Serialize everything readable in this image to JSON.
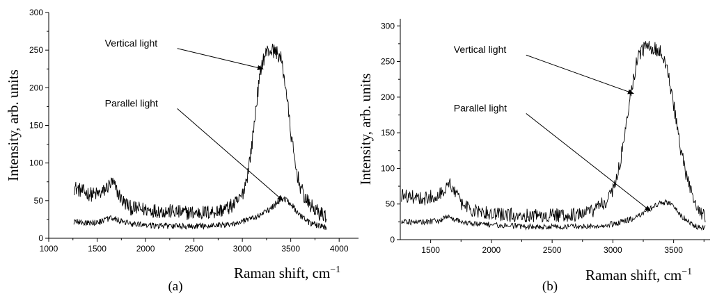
{
  "chart_data": [
    {
      "type": "line",
      "panel_label": "(a)",
      "xlabel": "Raman shift, cm",
      "xlabel_sup": "−1",
      "ylabel": "Intensity, arb. units",
      "xlim": [
        1000,
        4200
      ],
      "ylim": [
        0,
        300
      ],
      "xticks": [
        1000,
        1500,
        2000,
        2500,
        3000,
        3500,
        4000
      ],
      "yticks": [
        0,
        50,
        100,
        150,
        200,
        250,
        300
      ],
      "series": [
        {
          "name": "Vertical light",
          "noise": 10,
          "x": [
            1260,
            1350,
            1450,
            1550,
            1620,
            1660,
            1700,
            1760,
            1850,
            2000,
            2200,
            2400,
            2600,
            2750,
            2850,
            2950,
            3000,
            3050,
            3100,
            3150,
            3200,
            3250,
            3300,
            3350,
            3400,
            3450,
            3500,
            3550,
            3600,
            3650,
            3700,
            3750,
            3800,
            3870
          ],
          "y": [
            68,
            62,
            58,
            60,
            70,
            74,
            64,
            50,
            40,
            38,
            36,
            34,
            34,
            36,
            40,
            48,
            58,
            82,
            125,
            185,
            232,
            248,
            250,
            248,
            238,
            200,
            140,
            95,
            68,
            52,
            44,
            38,
            33,
            30
          ]
        },
        {
          "name": "Parallel light",
          "noise": 4,
          "x": [
            1260,
            1400,
            1550,
            1650,
            1750,
            1900,
            2100,
            2300,
            2500,
            2700,
            2900,
            3000,
            3100,
            3200,
            3300,
            3350,
            3400,
            3450,
            3500,
            3550,
            3600,
            3650,
            3700,
            3800,
            3870
          ],
          "y": [
            22,
            20,
            22,
            28,
            22,
            18,
            17,
            16,
            16,
            17,
            19,
            22,
            26,
            32,
            40,
            46,
            52,
            52,
            46,
            38,
            30,
            24,
            20,
            16,
            14
          ]
        }
      ],
      "annotations": [
        {
          "text": "Vertical light",
          "x": 1580,
          "y": 255,
          "arrow_to": [
            3215,
            225
          ]
        },
        {
          "text": "Parallel light",
          "x": 1580,
          "y": 175,
          "arrow_to": [
            3420,
            50
          ]
        }
      ]
    },
    {
      "type": "line",
      "panel_label": "(b)",
      "xlabel": "Raman shift, cm",
      "xlabel_sup": "−1",
      "ylabel": "Intensity, arb. units",
      "xlim": [
        1250,
        3800
      ],
      "ylim": [
        0,
        310
      ],
      "xticks": [
        1500,
        2000,
        2500,
        3000,
        3500
      ],
      "yticks": [
        0,
        50,
        100,
        150,
        200,
        250,
        300
      ],
      "series": [
        {
          "name": "Vertical light",
          "noise": 10,
          "x": [
            1260,
            1350,
            1450,
            1550,
            1620,
            1660,
            1700,
            1760,
            1850,
            2000,
            2200,
            2400,
            2600,
            2750,
            2850,
            2950,
            3000,
            3050,
            3100,
            3150,
            3200,
            3250,
            3300,
            3350,
            3400,
            3450,
            3500,
            3550,
            3600,
            3650,
            3700,
            3760
          ],
          "y": [
            62,
            60,
            58,
            62,
            72,
            78,
            66,
            50,
            40,
            36,
            34,
            34,
            34,
            36,
            42,
            55,
            70,
            100,
            150,
            210,
            252,
            268,
            270,
            268,
            262,
            240,
            190,
            135,
            92,
            62,
            42,
            32
          ]
        },
        {
          "name": "Parallel light",
          "noise": 4,
          "x": [
            1260,
            1400,
            1550,
            1650,
            1750,
            1900,
            2100,
            2300,
            2500,
            2700,
            2900,
            3000,
            3100,
            3200,
            3300,
            3350,
            3400,
            3450,
            3500,
            3550,
            3600,
            3650,
            3700,
            3760
          ],
          "y": [
            26,
            24,
            26,
            32,
            25,
            22,
            20,
            18,
            18,
            18,
            20,
            22,
            26,
            32,
            42,
            48,
            52,
            52,
            46,
            36,
            28,
            22,
            18,
            16
          ]
        }
      ],
      "annotations": [
        {
          "text": "Vertical light",
          "x": 1690,
          "y": 262,
          "arrow_to": [
            3170,
            205
          ]
        },
        {
          "text": "Parallel light",
          "x": 1690,
          "y": 180,
          "arrow_to": [
            3310,
            40
          ]
        }
      ]
    }
  ]
}
